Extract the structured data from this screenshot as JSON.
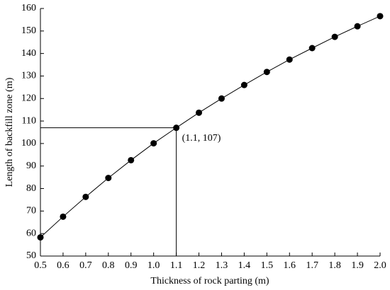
{
  "chart_data": {
    "type": "line",
    "x_label": "Thickness of rock parting (m)",
    "y_label": "Length of backfill zone (m)",
    "x": [
      0.5,
      0.6,
      0.7,
      0.8,
      0.9,
      1.0,
      1.1,
      1.2,
      1.3,
      1.4,
      1.5,
      1.6,
      1.7,
      1.8,
      1.9,
      2.0
    ],
    "series": [
      {
        "color": "#000000",
        "values": [
          58.3,
          67.5,
          76.3,
          84.7,
          92.6,
          100.1,
          107,
          113.7,
          120.0,
          126.0,
          131.8,
          137.3,
          142.4,
          147.4,
          152.1,
          156.6
        ]
      }
    ],
    "xlim": [
      0.5,
      2.0
    ],
    "xticks": [
      0.5,
      0.6,
      0.7,
      0.8,
      0.9,
      {
        "value": 1.0,
        "label": "1.0"
      },
      1.1,
      1.2,
      1.3,
      1.4,
      1.5,
      1.6,
      1.7,
      1.8,
      1.9,
      {
        "value": 2.0,
        "label": "2.0"
      }
    ],
    "ylim": [
      50,
      160
    ],
    "yticks": [
      50,
      60,
      70,
      80,
      90,
      100,
      110,
      120,
      130,
      140,
      150,
      160
    ],
    "annotations": [
      {
        "text": "(1.1, 107)",
        "x": 1.1,
        "y": 107
      }
    ]
  }
}
